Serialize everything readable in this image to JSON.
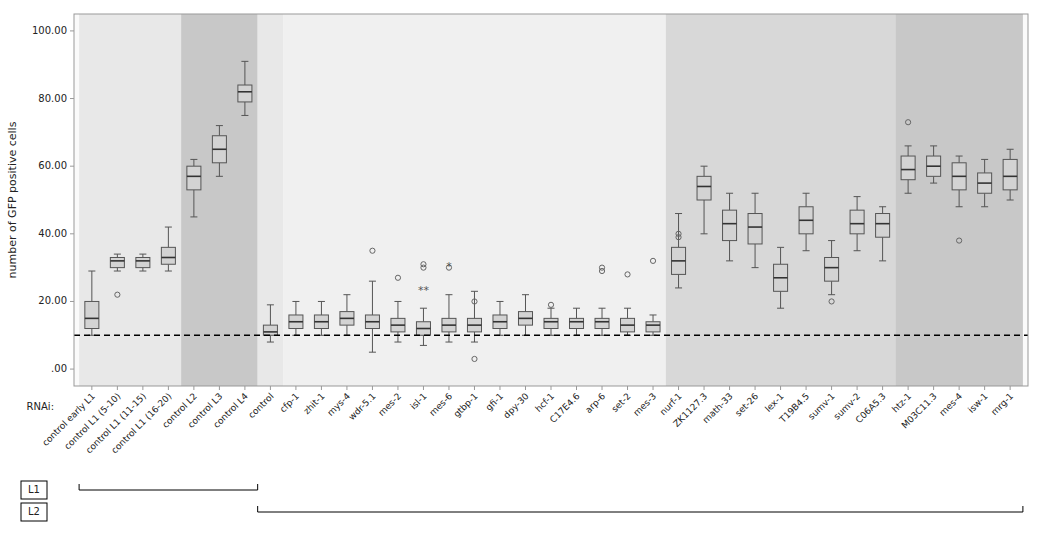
{
  "chart_data": {
    "type": "box",
    "ylabel": "number of GFP positive cells",
    "xlabel": "RNAi:",
    "ylim": [
      -5,
      105
    ],
    "yticks": [
      {
        "value": 0,
        "label": ".00"
      },
      {
        "value": 20,
        "label": "20.00"
      },
      {
        "value": 40,
        "label": "40.00"
      },
      {
        "value": 60,
        "label": "60.00"
      },
      {
        "value": 80,
        "label": "80.00"
      },
      {
        "value": 100,
        "label": "100.00"
      }
    ],
    "grid": false,
    "color": "#d3d3d3",
    "reference_y": 10,
    "categories": [
      "control early L1",
      "control L1 (5-10)",
      "control L1 (11-15)",
      "control L1 (16-20)",
      "control L2",
      "control L3",
      "control L4",
      "control",
      "cfp-1",
      "zhit-1",
      "mys-4",
      "wdr-5.1",
      "mes-2",
      "isl-1",
      "mes-6",
      "gtbp-1",
      "gfi-1",
      "dpy-30",
      "hcf-1",
      "C17E4.6",
      "arp-6",
      "set-2",
      "mes-3",
      "nurf-1",
      "ZK1127.3",
      "math-33",
      "set-26",
      "lex-1",
      "T19B4.5",
      "sumv-1",
      "sumv-2",
      "C06A5.3",
      "htz-1",
      "M03C11.3",
      "mes-4",
      "isw-1",
      "mrg-1"
    ],
    "boxes": [
      {
        "med": 15,
        "q1": 12,
        "q3": 20,
        "whislo": 10,
        "whishi": 29,
        "fliers": []
      },
      {
        "med": 32,
        "q1": 30,
        "q3": 33,
        "whislo": 29,
        "whishi": 34,
        "fliers": [
          22
        ]
      },
      {
        "med": 32,
        "q1": 30,
        "q3": 33,
        "whislo": 29,
        "whishi": 34,
        "fliers": []
      },
      {
        "med": 33,
        "q1": 31,
        "q3": 36,
        "whislo": 29,
        "whishi": 42,
        "fliers": []
      },
      {
        "med": 57,
        "q1": 53,
        "q3": 60,
        "whislo": 45,
        "whishi": 62,
        "fliers": []
      },
      {
        "med": 65,
        "q1": 61,
        "q3": 69,
        "whislo": 57,
        "whishi": 72,
        "fliers": []
      },
      {
        "med": 82,
        "q1": 79,
        "q3": 84,
        "whislo": 75,
        "whishi": 91,
        "fliers": []
      },
      {
        "med": 11,
        "q1": 10,
        "q3": 13,
        "whislo": 8,
        "whishi": 19,
        "fliers": []
      },
      {
        "med": 14,
        "q1": 12,
        "q3": 16,
        "whislo": 10,
        "whishi": 20,
        "fliers": []
      },
      {
        "med": 14,
        "q1": 12,
        "q3": 16,
        "whislo": 10,
        "whishi": 20,
        "fliers": []
      },
      {
        "med": 15,
        "q1": 13,
        "q3": 17,
        "whislo": 10,
        "whishi": 22,
        "fliers": []
      },
      {
        "med": 14,
        "q1": 12,
        "q3": 16,
        "whislo": 5,
        "whishi": 26,
        "fliers": [
          35
        ]
      },
      {
        "med": 13,
        "q1": 11,
        "q3": 15,
        "whislo": 8,
        "whishi": 20,
        "fliers": [
          27
        ]
      },
      {
        "med": 12,
        "q1": 10,
        "q3": 14,
        "whislo": 7,
        "whishi": 18,
        "fliers": [
          30,
          31
        ]
      },
      {
        "med": 13,
        "q1": 11,
        "q3": 15,
        "whislo": 8,
        "whishi": 22,
        "fliers": [
          30
        ]
      },
      {
        "med": 13,
        "q1": 11,
        "q3": 15,
        "whislo": 8,
        "whishi": 23,
        "fliers": [
          3,
          20
        ]
      },
      {
        "med": 14,
        "q1": 12,
        "q3": 16,
        "whislo": 10,
        "whishi": 20,
        "fliers": []
      },
      {
        "med": 15,
        "q1": 13,
        "q3": 17,
        "whislo": 10,
        "whishi": 22,
        "fliers": []
      },
      {
        "med": 14,
        "q1": 12,
        "q3": 15,
        "whislo": 10,
        "whishi": 18,
        "fliers": [
          19
        ]
      },
      {
        "med": 14,
        "q1": 12,
        "q3": 15,
        "whislo": 10,
        "whishi": 18,
        "fliers": []
      },
      {
        "med": 14,
        "q1": 12,
        "q3": 15,
        "whislo": 10,
        "whishi": 18,
        "fliers": [
          29,
          30
        ]
      },
      {
        "med": 13,
        "q1": 11,
        "q3": 15,
        "whislo": 10,
        "whishi": 18,
        "fliers": [
          28
        ]
      },
      {
        "med": 13,
        "q1": 11,
        "q3": 14,
        "whislo": 10,
        "whishi": 16,
        "fliers": [
          32
        ]
      },
      {
        "med": 32,
        "q1": 28,
        "q3": 36,
        "whislo": 24,
        "whishi": 46,
        "fliers": [
          39,
          40
        ]
      },
      {
        "med": 54,
        "q1": 50,
        "q3": 57,
        "whislo": 40,
        "whishi": 60,
        "fliers": []
      },
      {
        "med": 43,
        "q1": 38,
        "q3": 47,
        "whislo": 32,
        "whishi": 52,
        "fliers": []
      },
      {
        "med": 42,
        "q1": 37,
        "q3": 46,
        "whislo": 30,
        "whishi": 52,
        "fliers": []
      },
      {
        "med": 27,
        "q1": 23,
        "q3": 31,
        "whislo": 18,
        "whishi": 36,
        "fliers": []
      },
      {
        "med": 44,
        "q1": 40,
        "q3": 48,
        "whislo": 35,
        "whishi": 52,
        "fliers": []
      },
      {
        "med": 30,
        "q1": 26,
        "q3": 33,
        "whislo": 22,
        "whishi": 38,
        "fliers": [
          20
        ]
      },
      {
        "med": 43,
        "q1": 40,
        "q3": 47,
        "whislo": 35,
        "whishi": 51,
        "fliers": []
      },
      {
        "med": 43,
        "q1": 39,
        "q3": 46,
        "whislo": 32,
        "whishi": 48,
        "fliers": []
      },
      {
        "med": 59,
        "q1": 56,
        "q3": 63,
        "whislo": 52,
        "whishi": 66,
        "fliers": [
          73
        ]
      },
      {
        "med": 60,
        "q1": 57,
        "q3": 63,
        "whislo": 55,
        "whishi": 66,
        "fliers": []
      },
      {
        "med": 57,
        "q1": 53,
        "q3": 61,
        "whislo": 48,
        "whishi": 63,
        "fliers": [
          38
        ]
      },
      {
        "med": 55,
        "q1": 52,
        "q3": 58,
        "whislo": 48,
        "whishi": 62,
        "fliers": []
      },
      {
        "med": 57,
        "q1": 53,
        "q3": 62,
        "whislo": 50,
        "whishi": 65,
        "fliers": []
      }
    ],
    "annotations": [
      {
        "x": "isl-1",
        "y": 22,
        "text": "**"
      },
      {
        "x": "mes-6",
        "y": 29,
        "text": "*"
      }
    ],
    "bands": [
      {
        "from": "control early L1",
        "to": "control L1 (16-20)",
        "color": "#e8e8e8"
      },
      {
        "from": "control L2",
        "to": "control L4",
        "color": "#c8c8c8"
      },
      {
        "from": "control",
        "to": "control",
        "color": "#e8e8e8"
      },
      {
        "from": "cfp-1",
        "to": "mes-3",
        "color": "#f0f0f0"
      },
      {
        "from": "nurf-1",
        "to": "C06A5.3",
        "color": "#d8d8d8"
      },
      {
        "from": "htz-1",
        "to": "mrg-1",
        "color": "#c8c8c8"
      }
    ],
    "brackets": [
      {
        "label": "L1",
        "from": "control early L1",
        "to": "control L4"
      },
      {
        "label": "L2",
        "from": "control",
        "to": "mrg-1"
      }
    ]
  }
}
